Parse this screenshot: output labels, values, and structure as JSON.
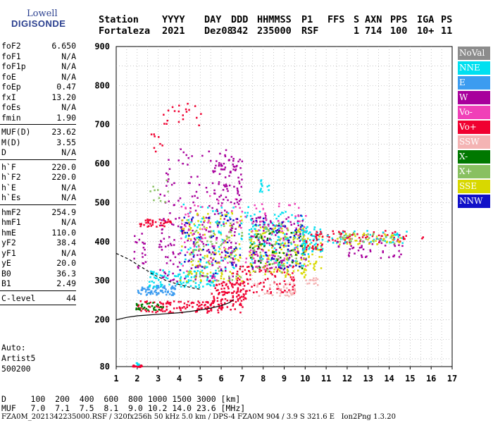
{
  "logo": {
    "line1": "Lowell",
    "line2": "DIGISONDE"
  },
  "header": {
    "cols": [
      "Station",
      "YYYY",
      "DAY",
      "DDD",
      "HHMMSS",
      "P1",
      "FFS",
      "S",
      "AXN",
      "PPS",
      "IGA",
      "PS"
    ],
    "vals": [
      "Fortaleza",
      "2021",
      "Dez08",
      "342",
      "235000",
      "RSF",
      "",
      "1",
      "714",
      "100",
      "10+",
      "11"
    ]
  },
  "params": [
    {
      "k": "foF2",
      "v": "6.650"
    },
    {
      "k": "foF1",
      "v": "N/A"
    },
    {
      "k": "foF1p",
      "v": "N/A"
    },
    {
      "k": "foE",
      "v": "N/A"
    },
    {
      "k": "foEp",
      "v": "0.47"
    },
    {
      "k": "fxI",
      "v": "13.20"
    },
    {
      "k": "foEs",
      "v": "N/A"
    },
    {
      "k": "fmin",
      "v": "1.90"
    },
    {
      "k": "MUF(D)",
      "v": "23.62"
    },
    {
      "k": "M(D)",
      "v": "3.55"
    },
    {
      "k": "D",
      "v": "N/A"
    },
    {
      "k": "h`F",
      "v": "220.0"
    },
    {
      "k": "h`F2",
      "v": "220.0"
    },
    {
      "k": "h`E",
      "v": "N/A"
    },
    {
      "k": "h`Es",
      "v": "N/A"
    },
    {
      "k": "hmF2",
      "v": "254.9"
    },
    {
      "k": "hmF1",
      "v": "N/A"
    },
    {
      "k": "hmE",
      "v": "110.0"
    },
    {
      "k": "yF2",
      "v": "38.4"
    },
    {
      "k": "yF1",
      "v": "N/A"
    },
    {
      "k": "yE",
      "v": "20.0"
    },
    {
      "k": "B0",
      "v": "36.3"
    },
    {
      "k": "B1",
      "v": "2.49"
    },
    {
      "k": "C-level",
      "v": "44"
    }
  ],
  "auto": {
    "l1": "Auto:",
    "l2": "Artist5",
    "l3": "500200"
  },
  "legend": [
    {
      "label": "NoVal",
      "color": "#8c8c8c"
    },
    {
      "label": "NNE",
      "color": "#00e0f0"
    },
    {
      "label": "E",
      "color": "#3c9cf0"
    },
    {
      "label": "W",
      "color": "#a8009c"
    },
    {
      "label": "Vo-",
      "color": "#f040b8"
    },
    {
      "label": "Vo+",
      "color": "#f00030"
    },
    {
      "label": "SSW",
      "color": "#f4b4b4"
    },
    {
      "label": "X-",
      "color": "#007800"
    },
    {
      "label": "X+",
      "color": "#88c060"
    },
    {
      "label": "SSE",
      "color": "#d8d800"
    },
    {
      "label": "NNW",
      "color": "#1010c8"
    }
  ],
  "bottom": {
    "d_label": "D",
    "d_vals": [
      "100",
      "200",
      "400",
      "600",
      "800",
      "1000",
      "1500",
      "3000"
    ],
    "d_unit": "[km]",
    "muf_label": "MUF",
    "muf_vals": [
      "7.0",
      "7.1",
      "7.5",
      "8.1",
      "9.0",
      "10.2",
      "14.0",
      "23.6"
    ],
    "muf_unit": "[MHz]"
  },
  "footer": "FZA0M_2021342235000.RSF / 320fx256h 50 kHz 5.0 km / DPS-4 FZA0M 904 / 3.9 S 321.6 E   Ion2Png 1.3.20",
  "chart_data": {
    "type": "scatter",
    "title": "",
    "xlabel": "",
    "ylabel": "",
    "xlim": [
      1,
      17
    ],
    "ylim": [
      80,
      900
    ],
    "x_ticks": [
      1,
      2,
      3,
      4,
      5,
      6,
      7,
      8,
      9,
      10,
      11,
      12,
      13,
      14,
      15,
      16,
      17
    ],
    "y_ticks": [
      80,
      200,
      300,
      400,
      500,
      600,
      700,
      800,
      900
    ],
    "grid": true,
    "clusters": [
      {
        "series": "Vo+",
        "x": [
          1.7,
          2.2
        ],
        "y": [
          80,
          86
        ],
        "n": 20
      },
      {
        "series": "NNE",
        "x": [
          1.8,
          2.1
        ],
        "y": [
          86,
          92
        ],
        "n": 6
      },
      {
        "series": "Vo+",
        "x": [
          1.9,
          7.0
        ],
        "y": [
          220,
          250
        ],
        "n": 140
      },
      {
        "series": "X-",
        "x": [
          1.9,
          3.2
        ],
        "y": [
          226,
          246
        ],
        "n": 30
      },
      {
        "series": "Vo+",
        "x": [
          5.5,
          7.2
        ],
        "y": [
          250,
          300
        ],
        "n": 90
      },
      {
        "series": "E",
        "x": [
          2.0,
          3.8
        ],
        "y": [
          265,
          290
        ],
        "n": 80
      },
      {
        "series": "NNE",
        "x": [
          2.5,
          5.8
        ],
        "y": [
          285,
          330
        ],
        "n": 110
      },
      {
        "series": "W",
        "x": [
          3.0,
          6.8
        ],
        "y": [
          300,
          470
        ],
        "n": 160
      },
      {
        "series": "W",
        "x": [
          3.0,
          6.8
        ],
        "y": [
          470,
          640
        ],
        "n": 90
      },
      {
        "series": "SSE",
        "x": [
          4.0,
          7.0
        ],
        "y": [
          300,
          480
        ],
        "n": 120
      },
      {
        "series": "NNE",
        "x": [
          4.0,
          7.5
        ],
        "y": [
          330,
          500
        ],
        "n": 80
      },
      {
        "series": "Vo-",
        "x": [
          4.0,
          7.2
        ],
        "y": [
          300,
          520
        ],
        "n": 70
      },
      {
        "series": "X+",
        "x": [
          4.5,
          7.0
        ],
        "y": [
          300,
          450
        ],
        "n": 70
      },
      {
        "series": "NNW",
        "x": [
          4.0,
          7.0
        ],
        "y": [
          320,
          470
        ],
        "n": 50
      },
      {
        "series": "Vo+",
        "x": [
          6.5,
          9.5
        ],
        "y": [
          270,
          340
        ],
        "n": 100
      },
      {
        "series": "SSW",
        "x": [
          7.5,
          9.5
        ],
        "y": [
          260,
          300
        ],
        "n": 40
      },
      {
        "series": "SSE",
        "x": [
          7.3,
          10.0
        ],
        "y": [
          310,
          440
        ],
        "n": 160
      },
      {
        "series": "NNE",
        "x": [
          7.3,
          10.0
        ],
        "y": [
          340,
          480
        ],
        "n": 110
      },
      {
        "series": "W",
        "x": [
          7.3,
          10.0
        ],
        "y": [
          330,
          470
        ],
        "n": 110
      },
      {
        "series": "X+",
        "x": [
          7.3,
          10.0
        ],
        "y": [
          320,
          450
        ],
        "n": 70
      },
      {
        "series": "Vo-",
        "x": [
          7.3,
          10.0
        ],
        "y": [
          330,
          500
        ],
        "n": 60
      },
      {
        "series": "NNW",
        "x": [
          7.3,
          10.0
        ],
        "y": [
          330,
          470
        ],
        "n": 50
      },
      {
        "series": "X-",
        "x": [
          7.3,
          10.0
        ],
        "y": [
          330,
          430
        ],
        "n": 40
      },
      {
        "series": "SSE",
        "x": [
          9.8,
          10.8
        ],
        "y": [
          330,
          420
        ],
        "n": 40
      },
      {
        "series": "NNE",
        "x": [
          9.8,
          10.8
        ],
        "y": [
          370,
          440
        ],
        "n": 60
      },
      {
        "series": "Vo+",
        "x": [
          10.0,
          10.8
        ],
        "y": [
          380,
          430
        ],
        "n": 30
      },
      {
        "series": "SSW",
        "x": [
          10.0,
          10.6
        ],
        "y": [
          290,
          310
        ],
        "n": 15
      },
      {
        "series": "Vo+",
        "x": [
          11.0,
          14.8
        ],
        "y": [
          400,
          430
        ],
        "n": 60
      },
      {
        "series": "NNE",
        "x": [
          11.0,
          14.8
        ],
        "y": [
          395,
          430
        ],
        "n": 40
      },
      {
        "series": "W",
        "x": [
          11.5,
          14.6
        ],
        "y": [
          360,
          420
        ],
        "n": 50
      },
      {
        "series": "SSE",
        "x": [
          11.5,
          14.6
        ],
        "y": [
          395,
          425
        ],
        "n": 40
      },
      {
        "series": "X+",
        "x": [
          11.5,
          14.6
        ],
        "y": [
          395,
          425
        ],
        "n": 25
      },
      {
        "series": "Vo+",
        "x": [
          15.5,
          15.6
        ],
        "y": [
          410,
          415
        ],
        "n": 2
      },
      {
        "series": "Vo+",
        "x": [
          2.0,
          3.6
        ],
        "y": [
          440,
          460
        ],
        "n": 40
      },
      {
        "series": "Vo+",
        "x": [
          3.2,
          5.0
        ],
        "y": [
          700,
          760
        ],
        "n": 20
      },
      {
        "series": "Vo+",
        "x": [
          2.3,
          3.2
        ],
        "y": [
          630,
          680
        ],
        "n": 8
      },
      {
        "series": "X+",
        "x": [
          2.5,
          3.5
        ],
        "y": [
          500,
          560
        ],
        "n": 10
      },
      {
        "series": "W",
        "x": [
          1.8,
          2.4
        ],
        "y": [
          330,
          430
        ],
        "n": 20
      },
      {
        "series": "W",
        "x": [
          5.8,
          7.0
        ],
        "y": [
          500,
          620
        ],
        "n": 50
      },
      {
        "series": "NNE",
        "x": [
          7.8,
          8.3
        ],
        "y": [
          520,
          560
        ],
        "n": 12
      }
    ],
    "trace": {
      "x": [
        1.0,
        1.5,
        2.0,
        2.5,
        3.0,
        3.5,
        4.0,
        4.5,
        5.0,
        5.5,
        6.0,
        6.4,
        6.6
      ],
      "y": [
        200,
        206,
        210,
        212,
        214,
        216,
        218,
        221,
        225,
        230,
        236,
        244,
        252
      ]
    },
    "trace2": {
      "x": [
        1.0,
        1.6,
        2.2,
        2.8,
        3.4,
        4.0,
        4.6,
        5.0
      ],
      "y": [
        370,
        355,
        335,
        315,
        300,
        290,
        282,
        278
      ]
    }
  }
}
